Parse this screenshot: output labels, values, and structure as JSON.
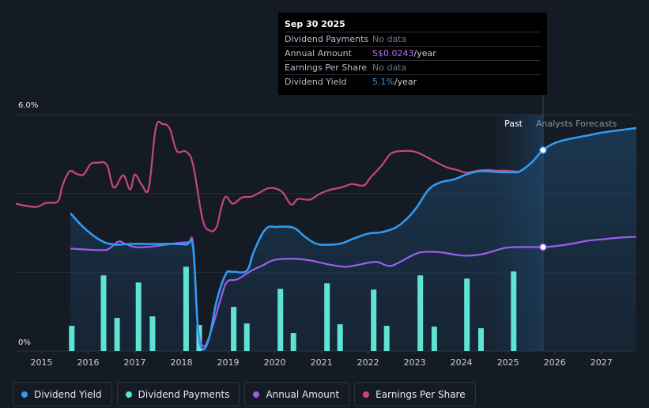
{
  "tooltip": {
    "date": "Sep 30 2025",
    "rows": [
      {
        "label": "Dividend Payments",
        "value": "No data"
      },
      {
        "label": "Annual Amount",
        "value": "S$0.0243",
        "unit": "/year"
      },
      {
        "label": "Earnings Per Share",
        "value": "No data"
      },
      {
        "label": "Dividend Yield",
        "value": "5.1%",
        "unit": "/year"
      }
    ]
  },
  "legend": [
    {
      "label": "Dividend Yield",
      "color": "#2f9bf2"
    },
    {
      "label": "Dividend Payments",
      "color": "#5fe3d4"
    },
    {
      "label": "Annual Amount",
      "color": "#9c5ef0"
    },
    {
      "label": "Earnings Per Share",
      "color": "#c94680"
    }
  ],
  "chart_data": {
    "type": "line",
    "ylabel_top": "6.0%",
    "ylabel_bottom": "0%",
    "ylim": [
      0,
      6.0
    ],
    "xlim": [
      2014.45,
      2027.75
    ],
    "x_ticks": [
      "2015",
      "2016",
      "2017",
      "2018",
      "2019",
      "2020",
      "2021",
      "2022",
      "2023",
      "2024",
      "2025",
      "2026",
      "2027"
    ],
    "past_label": "Past",
    "forecast_label": "Analysts Forecasts",
    "forecast_start": 2025.75,
    "past_band_start": 2024.75,
    "tooltip_x": 2025.75,
    "series": [
      {
        "name": "Earnings Per Share",
        "color": "#c94680",
        "scale": "independent",
        "points": [
          [
            2014.45,
            3.74
          ],
          [
            2014.7,
            3.68
          ],
          [
            2014.9,
            3.66
          ],
          [
            2015.1,
            3.76
          ],
          [
            2015.35,
            3.8
          ],
          [
            2015.45,
            4.2
          ],
          [
            2015.6,
            4.56
          ],
          [
            2015.75,
            4.5
          ],
          [
            2015.9,
            4.48
          ],
          [
            2016.05,
            4.74
          ],
          [
            2016.2,
            4.78
          ],
          [
            2016.4,
            4.73
          ],
          [
            2016.55,
            4.15
          ],
          [
            2016.75,
            4.46
          ],
          [
            2016.9,
            4.1
          ],
          [
            2017.0,
            4.48
          ],
          [
            2017.15,
            4.22
          ],
          [
            2017.3,
            4.14
          ],
          [
            2017.45,
            5.66
          ],
          [
            2017.6,
            5.76
          ],
          [
            2017.75,
            5.64
          ],
          [
            2017.9,
            5.08
          ],
          [
            2018.1,
            5.06
          ],
          [
            2018.25,
            4.72
          ],
          [
            2018.45,
            3.36
          ],
          [
            2018.6,
            3.06
          ],
          [
            2018.75,
            3.14
          ],
          [
            2018.85,
            3.62
          ],
          [
            2018.95,
            3.92
          ],
          [
            2019.1,
            3.74
          ],
          [
            2019.3,
            3.9
          ],
          [
            2019.5,
            3.92
          ],
          [
            2019.7,
            4.04
          ],
          [
            2019.9,
            4.14
          ],
          [
            2020.15,
            4.05
          ],
          [
            2020.35,
            3.72
          ],
          [
            2020.5,
            3.86
          ],
          [
            2020.75,
            3.84
          ],
          [
            2020.95,
            3.98
          ],
          [
            2021.15,
            4.08
          ],
          [
            2021.45,
            4.16
          ],
          [
            2021.65,
            4.24
          ],
          [
            2021.9,
            4.2
          ],
          [
            2022.05,
            4.4
          ],
          [
            2022.3,
            4.72
          ],
          [
            2022.5,
            5.02
          ],
          [
            2022.8,
            5.08
          ],
          [
            2023.0,
            5.06
          ],
          [
            2023.2,
            4.96
          ],
          [
            2023.45,
            4.8
          ],
          [
            2023.7,
            4.66
          ],
          [
            2023.9,
            4.6
          ],
          [
            2024.1,
            4.53
          ],
          [
            2024.35,
            4.58
          ],
          [
            2024.55,
            4.6
          ],
          [
            2024.75,
            4.58
          ],
          [
            2024.95,
            4.58
          ],
          [
            2025.15,
            4.56
          ],
          [
            2025.25,
            4.55
          ]
        ]
      },
      {
        "name": "Dividend Yield",
        "color": "#2f9bf2",
        "unit": "%",
        "points": [
          [
            2015.62,
            3.5
          ],
          [
            2015.85,
            3.2
          ],
          [
            2016.1,
            2.94
          ],
          [
            2016.35,
            2.76
          ],
          [
            2016.6,
            2.7
          ],
          [
            2016.9,
            2.72
          ],
          [
            2017.2,
            2.72
          ],
          [
            2017.5,
            2.72
          ],
          [
            2017.85,
            2.72
          ],
          [
            2018.1,
            2.7
          ],
          [
            2018.25,
            2.62
          ],
          [
            2018.35,
            0.62
          ],
          [
            2018.45,
            0.05
          ],
          [
            2018.6,
            0.36
          ],
          [
            2018.75,
            1.25
          ],
          [
            2018.95,
            1.95
          ],
          [
            2019.1,
            2.01
          ],
          [
            2019.4,
            2.04
          ],
          [
            2019.55,
            2.52
          ],
          [
            2019.8,
            3.09
          ],
          [
            2020.05,
            3.15
          ],
          [
            2020.4,
            3.13
          ],
          [
            2020.65,
            2.9
          ],
          [
            2020.9,
            2.72
          ],
          [
            2021.2,
            2.7
          ],
          [
            2021.45,
            2.74
          ],
          [
            2021.7,
            2.86
          ],
          [
            2022.0,
            2.98
          ],
          [
            2022.3,
            3.02
          ],
          [
            2022.6,
            3.14
          ],
          [
            2022.85,
            3.38
          ],
          [
            2023.05,
            3.66
          ],
          [
            2023.3,
            4.1
          ],
          [
            2023.55,
            4.28
          ],
          [
            2023.85,
            4.36
          ],
          [
            2024.1,
            4.48
          ],
          [
            2024.35,
            4.56
          ],
          [
            2024.6,
            4.56
          ],
          [
            2024.85,
            4.54
          ],
          [
            2025.1,
            4.54
          ],
          [
            2025.25,
            4.56
          ],
          [
            2025.5,
            4.78
          ],
          [
            2025.75,
            5.1
          ],
          [
            2026.0,
            5.28
          ],
          [
            2026.3,
            5.38
          ],
          [
            2026.65,
            5.46
          ],
          [
            2027.0,
            5.54
          ],
          [
            2027.35,
            5.6
          ],
          [
            2027.75,
            5.66
          ]
        ]
      },
      {
        "name": "Annual Amount",
        "color": "#9c5ef0",
        "unit": "S$",
        "points": [
          [
            2015.62,
            2.6
          ],
          [
            2015.9,
            2.58
          ],
          [
            2016.3,
            2.56
          ],
          [
            2016.45,
            2.6
          ],
          [
            2016.65,
            2.78
          ],
          [
            2016.8,
            2.72
          ],
          [
            2017.0,
            2.64
          ],
          [
            2017.25,
            2.64
          ],
          [
            2017.55,
            2.68
          ],
          [
            2017.9,
            2.74
          ],
          [
            2018.15,
            2.76
          ],
          [
            2018.25,
            2.7
          ],
          [
            2018.35,
            0.66
          ],
          [
            2018.48,
            0.12
          ],
          [
            2018.65,
            0.56
          ],
          [
            2018.85,
            1.36
          ],
          [
            2018.98,
            1.76
          ],
          [
            2019.2,
            1.82
          ],
          [
            2019.5,
            2.04
          ],
          [
            2019.75,
            2.18
          ],
          [
            2019.95,
            2.3
          ],
          [
            2020.2,
            2.34
          ],
          [
            2020.5,
            2.34
          ],
          [
            2020.85,
            2.28
          ],
          [
            2021.15,
            2.2
          ],
          [
            2021.5,
            2.14
          ],
          [
            2021.75,
            2.18
          ],
          [
            2022.0,
            2.24
          ],
          [
            2022.2,
            2.26
          ],
          [
            2022.45,
            2.16
          ],
          [
            2022.65,
            2.24
          ],
          [
            2022.9,
            2.4
          ],
          [
            2023.1,
            2.5
          ],
          [
            2023.35,
            2.52
          ],
          [
            2023.6,
            2.5
          ],
          [
            2023.9,
            2.44
          ],
          [
            2024.15,
            2.42
          ],
          [
            2024.45,
            2.46
          ],
          [
            2024.7,
            2.54
          ],
          [
            2024.95,
            2.62
          ],
          [
            2025.25,
            2.64
          ],
          [
            2025.75,
            2.64
          ],
          [
            2026.0,
            2.66
          ],
          [
            2026.35,
            2.72
          ],
          [
            2026.7,
            2.8
          ],
          [
            2027.05,
            2.84
          ],
          [
            2027.4,
            2.88
          ],
          [
            2027.75,
            2.9
          ]
        ],
        "label_value_2025_75": "S$0.0243"
      }
    ],
    "dividend_payments": {
      "name": "Dividend Payments",
      "color": "#5fe3d4",
      "points": [
        [
          2015.65,
          0.64
        ],
        [
          2016.33,
          1.92
        ],
        [
          2016.62,
          0.84
        ],
        [
          2017.08,
          1.74
        ],
        [
          2017.38,
          0.88
        ],
        [
          2018.1,
          2.14
        ],
        [
          2018.38,
          0.66
        ],
        [
          2019.12,
          1.12
        ],
        [
          2019.4,
          0.7
        ],
        [
          2020.12,
          1.58
        ],
        [
          2020.4,
          0.46
        ],
        [
          2021.12,
          1.72
        ],
        [
          2021.4,
          0.68
        ],
        [
          2022.12,
          1.56
        ],
        [
          2022.4,
          0.64
        ],
        [
          2023.12,
          1.92
        ],
        [
          2023.42,
          0.62
        ],
        [
          2024.12,
          1.84
        ],
        [
          2024.42,
          0.58
        ],
        [
          2025.12,
          2.02
        ]
      ]
    }
  }
}
